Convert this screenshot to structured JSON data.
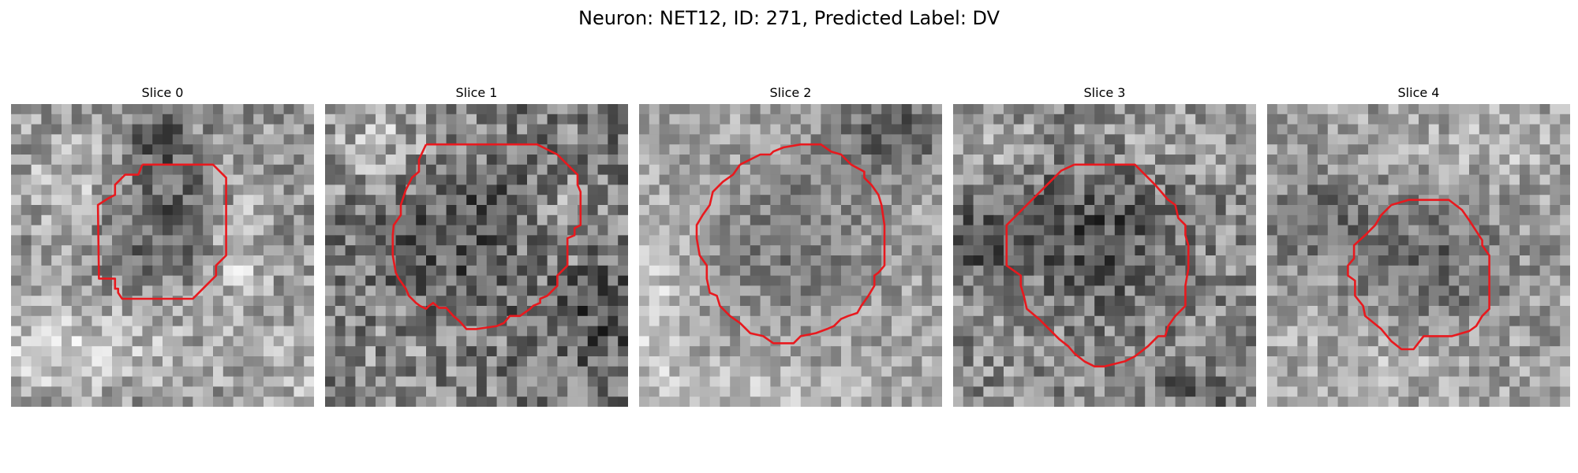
{
  "figure": {
    "title": "Neuron: NET12, ID: 271, Predicted Label: DV"
  },
  "contour_color": "#e8191e",
  "panels": [
    {
      "title": "Slice 0"
    },
    {
      "title": "Slice 1"
    },
    {
      "title": "Slice 2"
    },
    {
      "title": "Slice 3"
    },
    {
      "title": "Slice 4"
    }
  ]
}
